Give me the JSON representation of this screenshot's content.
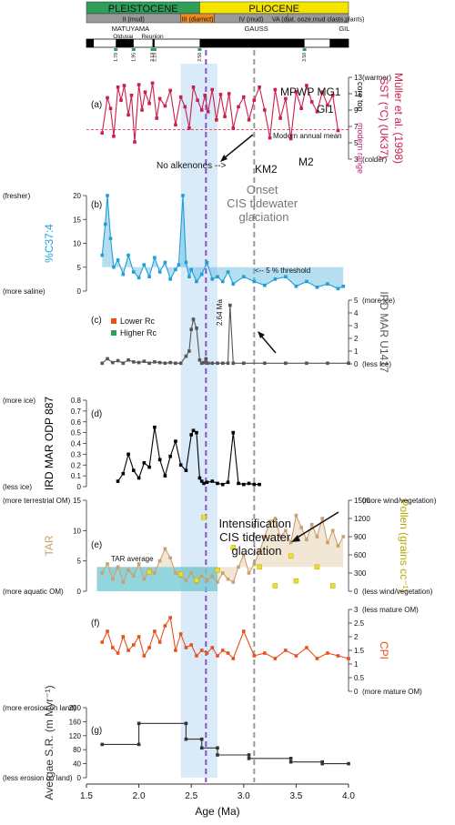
{
  "header": {
    "epochs": [
      {
        "label": "PLEISTOCENE",
        "start": 1.5,
        "end": 2.58,
        "color": "#2e9e58"
      },
      {
        "label": "PLIOCENE",
        "start": 2.58,
        "end": 4.0,
        "color": "#f5e400"
      }
    ],
    "units": [
      {
        "label": "II (mud)",
        "start": 1.5,
        "end": 2.4,
        "color": "#9a9a9a"
      },
      {
        "label": "III (diamict)",
        "start": 2.4,
        "end": 2.72,
        "color": "#f08a24"
      },
      {
        "label": "IV (mud)",
        "start": 2.72,
        "end": 3.42,
        "color": "#9a9a9a"
      },
      {
        "label": "VA (diat. ooze,mud clasts,plants)",
        "start": 3.42,
        "end": 4.0,
        "color": "#9a9a9a"
      }
    ],
    "chron_labels": [
      {
        "label": "MATUYAMA",
        "x": 1.92
      },
      {
        "label": "GAUSS",
        "x": 3.12
      },
      {
        "label": "GIL",
        "x": 3.96
      }
    ],
    "subchron_labels": [
      {
        "label": "Olduvai",
        "x": 1.85
      },
      {
        "label": "Reunion",
        "x": 2.13
      }
    ],
    "normal_polarity": [
      [
        1.5,
        1.57
      ],
      [
        1.78,
        1.95
      ],
      [
        2.13,
        2.15
      ],
      [
        2.58,
        3.58
      ],
      [
        3.82,
        4.0
      ]
    ],
    "boundary_ticks": [
      "1.78",
      "1.95",
      "2.13",
      "2.15",
      "2.58",
      "3.58"
    ]
  },
  "annotations": {
    "onset": "Onset\nCIS tidewater\nglaciation",
    "intensification": "Intensification\nCIS tidewater\nglaciation",
    "mpwp": "MPWP MG1",
    "gi1": "Gi1",
    "km2": "KM2",
    "m2": "M2",
    "no_alkenones": "No alkenones -->",
    "core_top": "core top",
    "modern_range": "modern range",
    "modern_mean": "Modern annual mean",
    "threshold": "<-- 5 % threshold",
    "tar_average": "TAR average",
    "age_264": "2.64 Ma",
    "legend_lower": "Lower Rc",
    "legend_higher": "Higher Rc"
  },
  "chart_data": [
    {
      "panel": "(a)",
      "type": "line",
      "ylabel": "SST (°C) (UK37)",
      "ylabel2": "Müller et al. (1998)",
      "ylim": [
        3,
        13
      ],
      "yticks": [
        3,
        5,
        7,
        9,
        11,
        13
      ],
      "top_label": "(warmer)",
      "bottom_label": "(colder)",
      "modern_mean": 6.6,
      "series": [
        {
          "name": "",
          "color": "#cc1f4d",
          "x": [
            1.65,
            1.7,
            1.73,
            1.76,
            1.8,
            1.83,
            1.86,
            1.9,
            1.93,
            1.96,
            2.0,
            2.03,
            2.06,
            2.1,
            2.13,
            2.17,
            2.2,
            2.25,
            2.3,
            2.35,
            2.4,
            2.44,
            2.48,
            2.52,
            2.56,
            2.6,
            2.63,
            2.66,
            2.7,
            2.74,
            2.78,
            2.82,
            2.86,
            2.9,
            2.95,
            3.0,
            3.05,
            3.1,
            3.15,
            3.2,
            3.25,
            3.3,
            3.35,
            3.4,
            3.45,
            3.5,
            3.55,
            3.6,
            3.65,
            3.7,
            3.75,
            3.8,
            3.85,
            3.9
          ],
          "values": [
            6.2,
            10.5,
            9.2,
            5.8,
            11.8,
            10.2,
            12.0,
            8.4,
            10.8,
            5.1,
            12.1,
            9.0,
            11.2,
            9.8,
            12.3,
            8.0,
            10.4,
            9.5,
            11.4,
            7.2,
            10.6,
            9.4,
            6.8,
            11.8,
            10.2,
            9.0,
            10.8,
            8.8,
            11.5,
            7.8,
            10.9,
            8.2,
            11.0,
            6.8,
            9.4,
            10.6,
            7.8,
            10.2,
            11.8,
            9.0,
            5.6,
            11.5,
            8.0,
            10.4,
            5.5,
            11.2,
            9.2,
            12.0,
            10.0,
            8.8,
            11.2,
            9.6,
            10.8,
            6.5
          ]
        }
      ]
    },
    {
      "panel": "(b)",
      "type": "area",
      "ylabel": "%C37:4",
      "ylim": [
        0,
        20
      ],
      "yticks": [
        0,
        5,
        10,
        15,
        20
      ],
      "top_label": "(fresher)",
      "bottom_label": "(more saline)",
      "threshold": 5,
      "series": [
        {
          "name": "",
          "color": "#1f9fd6",
          "x": [
            1.65,
            1.68,
            1.7,
            1.73,
            1.76,
            1.8,
            1.85,
            1.9,
            1.95,
            2.0,
            2.05,
            2.1,
            2.15,
            2.2,
            2.25,
            2.3,
            2.35,
            2.38,
            2.42,
            2.45,
            2.48,
            2.5,
            2.55,
            2.6,
            2.65,
            2.7,
            2.75,
            2.8,
            2.85,
            2.9,
            3.0,
            3.1,
            3.2,
            3.3,
            3.4,
            3.5,
            3.6,
            3.7,
            3.8,
            3.9,
            3.95
          ],
          "values": [
            7.5,
            14.0,
            24.0,
            11.0,
            5.0,
            6.5,
            3.5,
            7.5,
            4.0,
            2.8,
            5.5,
            3.0,
            7.0,
            4.0,
            6.0,
            2.5,
            4.5,
            5.5,
            21.5,
            6.0,
            3.0,
            4.5,
            2.0,
            3.5,
            6.0,
            2.5,
            3.0,
            2.0,
            4.0,
            1.5,
            3.0,
            2.0,
            1.2,
            2.5,
            3.0,
            1.0,
            2.0,
            0.8,
            1.5,
            0.5,
            1.0
          ]
        }
      ]
    },
    {
      "panel": "(c)",
      "type": "line",
      "ylabel": "IRD MAR U1417",
      "ylim": [
        0,
        5
      ],
      "yticks": [
        0,
        1,
        2,
        3,
        4,
        5
      ],
      "top_label": "(more ice)",
      "bottom_label": "(less ice)",
      "series": [
        {
          "name": "",
          "color": "#555555",
          "x": [
            1.65,
            1.7,
            1.75,
            1.8,
            1.85,
            1.9,
            1.95,
            2.0,
            2.05,
            2.1,
            2.15,
            2.2,
            2.25,
            2.3,
            2.35,
            2.4,
            2.45,
            2.48,
            2.5,
            2.52,
            2.55,
            2.58,
            2.6,
            2.62,
            2.64,
            2.66,
            2.7,
            2.75,
            2.8,
            2.85,
            2.87,
            2.9,
            3.0,
            3.2,
            3.4,
            3.6,
            3.8,
            4.0
          ],
          "values": [
            0.05,
            0.4,
            0.1,
            0.25,
            0.05,
            0.3,
            0.15,
            0.1,
            0.2,
            0.05,
            0.15,
            0.1,
            0.05,
            0.1,
            0.05,
            0.05,
            0.6,
            1.0,
            2.7,
            3.5,
            2.8,
            0.3,
            0.05,
            0.1,
            0.4,
            0.05,
            0.05,
            0.05,
            0.05,
            0.05,
            4.6,
            0.05,
            0.05,
            0.05,
            0.05,
            0.05,
            0.05,
            0.05
          ]
        }
      ]
    },
    {
      "panel": "(d)",
      "type": "line",
      "ylabel": "IRD MAR ODP 887",
      "ylim": [
        0,
        0.8
      ],
      "yticks": [
        0,
        0.1,
        0.2,
        0.3,
        0.4,
        0.5,
        0.6,
        0.7,
        0.8
      ],
      "top_label": "(more ice)",
      "bottom_label": "(less ice)",
      "series": [
        {
          "name": "",
          "color": "#000000",
          "x": [
            1.8,
            1.85,
            1.9,
            1.95,
            2.0,
            2.05,
            2.1,
            2.15,
            2.2,
            2.25,
            2.3,
            2.35,
            2.4,
            2.45,
            2.5,
            2.52,
            2.55,
            2.58,
            2.6,
            2.62,
            2.65,
            2.7,
            2.75,
            2.8,
            2.85,
            2.9,
            2.95,
            3.0,
            3.05,
            3.1,
            3.15
          ],
          "values": [
            0.05,
            0.12,
            0.3,
            0.15,
            0.08,
            0.22,
            0.18,
            0.55,
            0.25,
            0.1,
            0.28,
            0.42,
            0.2,
            0.15,
            0.48,
            0.52,
            0.5,
            0.08,
            0.05,
            0.03,
            0.04,
            0.05,
            0.03,
            0.02,
            0.04,
            0.5,
            0.03,
            0.02,
            0.03,
            0.02,
            0.02
          ]
        }
      ]
    },
    {
      "panel": "(e)",
      "type": "area",
      "ylabel": "TAR",
      "ylabel2": "Pollen (grains cc⁻¹)",
      "ylim": [
        0,
        15
      ],
      "yticks": [
        0,
        5,
        10,
        15
      ],
      "y2lim": [
        0,
        1500
      ],
      "y2ticks": [
        0,
        300,
        600,
        900,
        1200,
        1500
      ],
      "top_label": "(more terrestrial OM)",
      "bottom_label": "(more aquatic OM)",
      "top_label2": "(more wind/vegetation)",
      "bottom_label2": "(less wind/vegetation)",
      "tar_average": 4.0,
      "series": [
        {
          "name": "",
          "color": "#c9a070",
          "x": [
            1.65,
            1.7,
            1.75,
            1.8,
            1.85,
            1.9,
            1.95,
            2.0,
            2.05,
            2.1,
            2.15,
            2.2,
            2.25,
            2.3,
            2.35,
            2.4,
            2.45,
            2.5,
            2.55,
            2.6,
            2.65,
            2.7,
            2.75,
            2.8,
            2.85,
            2.9,
            2.95,
            3.0,
            3.05,
            3.1,
            3.15,
            3.2,
            3.25,
            3.3,
            3.35,
            3.4,
            3.45,
            3.5,
            3.55,
            3.6,
            3.65,
            3.7,
            3.75,
            3.8,
            3.85,
            3.9,
            3.95
          ],
          "values": [
            3.0,
            4.5,
            2.0,
            4.0,
            1.5,
            3.5,
            2.5,
            4.5,
            2.0,
            3.5,
            3.0,
            5.0,
            7.0,
            5.5,
            3.0,
            2.5,
            1.8,
            3.0,
            1.5,
            2.5,
            1.8,
            2.5,
            1.5,
            3.0,
            2.0,
            1.5,
            4.0,
            6.0,
            3.0,
            4.5,
            6.5,
            9.0,
            11.5,
            12.0,
            9.0,
            10.0,
            8.0,
            12.5,
            10.5,
            8.5,
            11.0,
            9.0,
            12.0,
            8.0,
            10.0,
            7.5,
            9.0
          ]
        },
        {
          "name": "",
          "color": "#c7b820",
          "x": [
            2.1,
            2.4,
            2.55,
            2.62,
            2.75,
            2.9,
            3.15,
            3.3,
            3.45,
            3.5,
            3.7,
            3.85
          ],
          "values": [
            320,
            280,
            180,
            1220,
            350,
            720,
            400,
            90,
            580,
            170,
            400,
            90
          ]
        }
      ]
    },
    {
      "panel": "(f)",
      "type": "line",
      "ylabel": "CPI",
      "ylim": [
        0,
        3
      ],
      "yticks": [
        0,
        0.5,
        1.0,
        1.5,
        2.0,
        2.5,
        3.0
      ],
      "top_label": "(less mature OM)",
      "bottom_label": "(more mature OM)",
      "series": [
        {
          "name": "",
          "color": "#e8511c",
          "x": [
            1.65,
            1.7,
            1.75,
            1.8,
            1.85,
            1.9,
            1.95,
            2.0,
            2.05,
            2.1,
            2.15,
            2.2,
            2.25,
            2.3,
            2.35,
            2.4,
            2.45,
            2.5,
            2.55,
            2.6,
            2.65,
            2.7,
            2.75,
            2.8,
            2.85,
            2.9,
            3.0,
            3.1,
            3.2,
            3.3,
            3.4,
            3.5,
            3.6,
            3.7,
            3.8,
            3.9,
            4.0
          ],
          "values": [
            1.8,
            2.2,
            1.6,
            1.4,
            2.0,
            1.5,
            1.7,
            2.0,
            1.3,
            1.6,
            2.2,
            1.8,
            2.4,
            2.7,
            1.5,
            2.1,
            1.6,
            1.7,
            1.3,
            1.5,
            1.4,
            1.6,
            1.3,
            1.5,
            1.4,
            1.2,
            2.2,
            1.3,
            1.4,
            1.2,
            1.5,
            1.3,
            1.6,
            1.2,
            1.4,
            1.3,
            1.2
          ]
        }
      ]
    },
    {
      "panel": "(g)",
      "type": "line",
      "ylabel": "Avergae S.R. (m Myr⁻¹)",
      "ylim": [
        0,
        200
      ],
      "yticks": [
        0,
        40,
        80,
        120,
        160,
        200
      ],
      "top_label": "(more erosion on land)",
      "bottom_label": "(less erosion on land)",
      "series": [
        {
          "name": "",
          "color": "#333333",
          "x": [
            1.65,
            2.0,
            2.0,
            2.45,
            2.45,
            2.6,
            2.6,
            2.75,
            2.75,
            3.05,
            3.05,
            3.45,
            3.45,
            3.75,
            3.75,
            4.0
          ],
          "values": [
            95,
            95,
            155,
            155,
            110,
            110,
            85,
            85,
            65,
            65,
            55,
            55,
            45,
            45,
            40,
            40
          ]
        }
      ]
    }
  ],
  "xaxis": {
    "label": "Age (Ma)",
    "xlim": [
      1.5,
      4.0
    ],
    "ticks": [
      "1.5",
      "2.0",
      "2.5",
      "3.0",
      "3.5",
      "4.0"
    ],
    "blue_band": [
      2.4,
      2.75
    ],
    "purple_line": 2.64,
    "gray_line": 3.1
  }
}
